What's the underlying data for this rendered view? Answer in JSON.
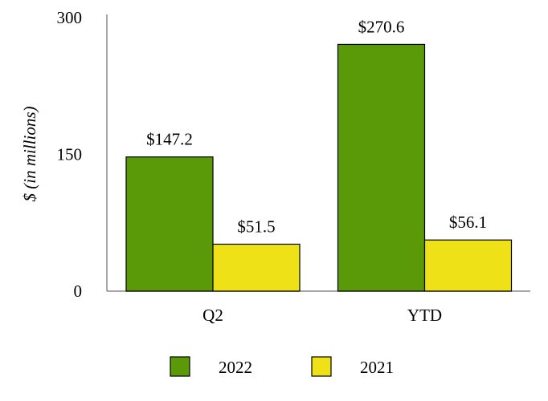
{
  "chart_data": {
    "type": "bar",
    "categories": [
      "Q2",
      "YTD"
    ],
    "series": [
      {
        "name": "2022",
        "values": [
          147.2,
          270.6
        ],
        "labels": [
          "$147.2",
          "$270.6"
        ],
        "color": "#5a9a08"
      },
      {
        "name": "2021",
        "values": [
          51.5,
          56.1
        ],
        "labels": [
          "$51.5",
          "$56.1"
        ],
        "color": "#eee117"
      }
    ],
    "ylabel": "$ (in millions)",
    "yticks": [
      "0",
      "150",
      "300"
    ],
    "ytick_values": [
      0,
      150,
      300
    ],
    "ylim": [
      0,
      300
    ],
    "grid": false,
    "legend_position": "bottom"
  }
}
